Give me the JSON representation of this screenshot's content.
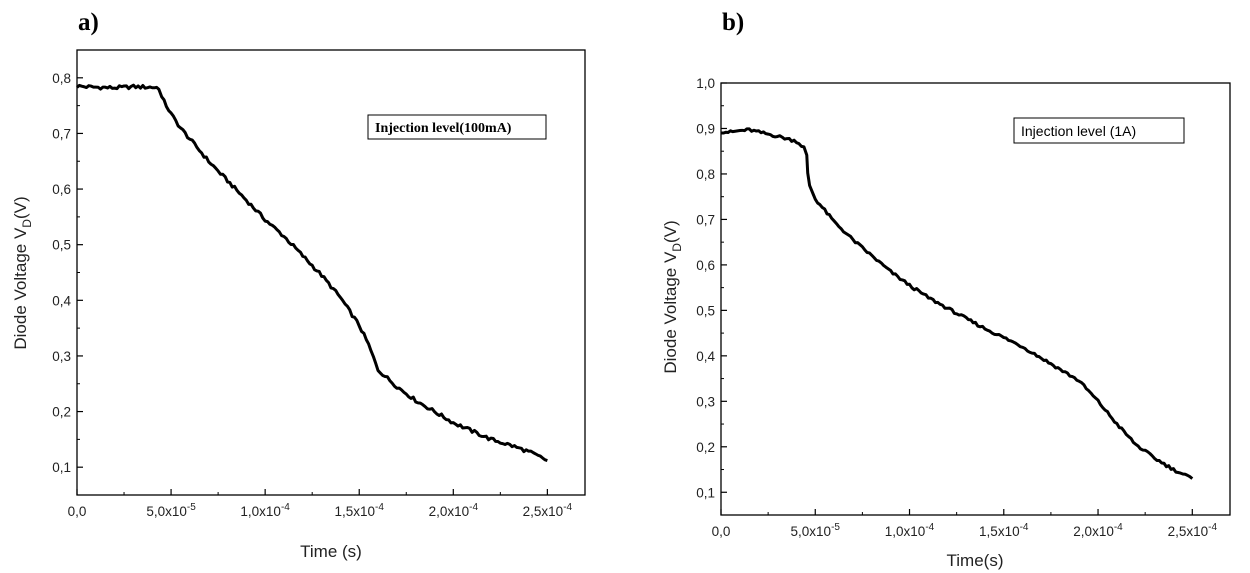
{
  "chart_data": [
    {
      "type": "line",
      "panel_label": "a)",
      "xlabel": "Time (s)",
      "ylabel_main": "Diode Voltage V",
      "ylabel_sub": "D",
      "ylabel_tail": "(V)",
      "annotation": "Injection level(100mA)",
      "xlim": [
        0,
        0.00027
      ],
      "ylim": [
        0.05,
        0.85
      ],
      "x_ticks": [
        0,
        5e-05,
        0.0001,
        0.00015,
        0.0002,
        0.00025
      ],
      "x_tick_labels": [
        {
          "mantissa": "0,0",
          "exponent": ""
        },
        {
          "mantissa": "5,0x10",
          "exponent": "-5"
        },
        {
          "mantissa": "1,0x10",
          "exponent": "-4"
        },
        {
          "mantissa": "1,5x10",
          "exponent": "-4"
        },
        {
          "mantissa": "2,0x10",
          "exponent": "-4"
        },
        {
          "mantissa": "2,5x10",
          "exponent": "-4"
        }
      ],
      "y_ticks": [
        0.1,
        0.2,
        0.3,
        0.4,
        0.5,
        0.6,
        0.7,
        0.8
      ],
      "y_tick_labels": [
        "0,1",
        "0,2",
        "0,3",
        "0,4",
        "0,5",
        "0,6",
        "0,7",
        "0,8"
      ],
      "series": [
        {
          "x": [
            0,
            1e-05,
            2e-05,
            3e-05,
            4e-05,
            4.35e-05,
            4.5e-05,
            5e-05,
            5.5e-05,
            6e-05,
            7e-05,
            8e-05,
            9e-05,
            0.0001,
            0.00011,
            0.00012,
            0.00013,
            0.00014,
            0.000145,
            0.00015,
            0.000155,
            0.00016,
            0.00017,
            0.00018,
            0.00019,
            0.0002,
            0.00021,
            0.00022,
            0.00023,
            0.00024,
            0.00025
          ],
          "y": [
            0.785,
            0.783,
            0.782,
            0.784,
            0.783,
            0.782,
            0.765,
            0.735,
            0.71,
            0.69,
            0.65,
            0.615,
            0.58,
            0.545,
            0.515,
            0.48,
            0.445,
            0.405,
            0.38,
            0.355,
            0.32,
            0.275,
            0.245,
            0.22,
            0.2,
            0.18,
            0.165,
            0.15,
            0.14,
            0.128,
            0.112
          ]
        }
      ]
    },
    {
      "type": "line",
      "panel_label": "b)",
      "xlabel": "Time(s)",
      "ylabel_main": "Diode Voltage V",
      "ylabel_sub": "D",
      "ylabel_tail": "(V)",
      "annotation": "Injection level (1A)",
      "xlim": [
        0,
        0.00027
      ],
      "ylim": [
        0.05,
        1.0
      ],
      "x_ticks": [
        0,
        5e-05,
        0.0001,
        0.00015,
        0.0002,
        0.00025
      ],
      "x_tick_labels": [
        {
          "mantissa": "0,0",
          "exponent": ""
        },
        {
          "mantissa": "5,0x10",
          "exponent": "-5"
        },
        {
          "mantissa": "1,0x10",
          "exponent": "-4"
        },
        {
          "mantissa": "1,5x10",
          "exponent": "-4"
        },
        {
          "mantissa": "2,0x10",
          "exponent": "-4"
        },
        {
          "mantissa": "2,5x10",
          "exponent": "-4"
        }
      ],
      "y_ticks": [
        0.1,
        0.2,
        0.3,
        0.4,
        0.5,
        0.6,
        0.7,
        0.8,
        0.9,
        1.0
      ],
      "y_tick_labels": [
        "0,1",
        "0,2",
        "0,3",
        "0,4",
        "0,5",
        "0,6",
        "0,7",
        "0,8",
        "0,9",
        "1,0"
      ],
      "series": [
        {
          "x": [
            0,
            5e-06,
            1e-05,
            1.5e-05,
            2e-05,
            3e-05,
            4e-05,
            4.4e-05,
            4.55e-05,
            4.6e-05,
            4.7e-05,
            5e-05,
            6e-05,
            7e-05,
            8e-05,
            9e-05,
            0.0001,
            0.00011,
            0.00012,
            0.00013,
            0.00014,
            0.00015,
            0.00016,
            0.00017,
            0.00018,
            0.00019,
            0.0002,
            0.00021,
            0.00022,
            0.00023,
            0.00024,
            0.00025
          ],
          "y": [
            0.893,
            0.892,
            0.895,
            0.897,
            0.892,
            0.883,
            0.872,
            0.858,
            0.84,
            0.8,
            0.775,
            0.745,
            0.695,
            0.655,
            0.62,
            0.585,
            0.555,
            0.528,
            0.505,
            0.482,
            0.46,
            0.44,
            0.42,
            0.395,
            0.37,
            0.345,
            0.3,
            0.25,
            0.205,
            0.175,
            0.15,
            0.13
          ]
        }
      ]
    }
  ]
}
